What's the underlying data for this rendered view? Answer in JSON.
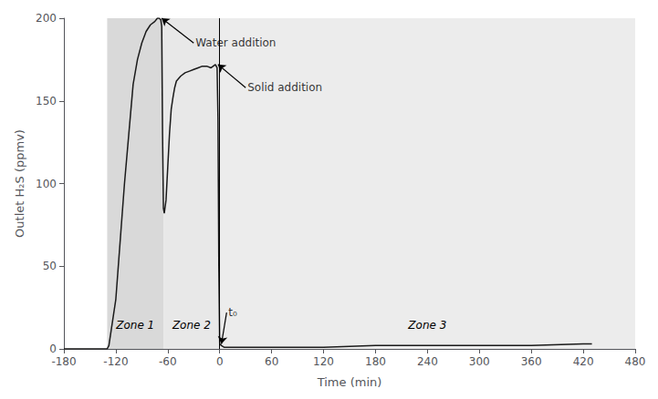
{
  "chart_data": {
    "type": "line",
    "xlabel": "Time (min)",
    "ylabel": "Outlet H₂S (ppmv)",
    "x": [
      -180,
      -130,
      -128,
      -120,
      -110,
      -100,
      -95,
      -90,
      -85,
      -80,
      -75,
      -72,
      -70,
      -68,
      -67,
      -66,
      -65,
      -64,
      -62,
      -60,
      -58,
      -56,
      -54,
      -52,
      -50,
      -45,
      -40,
      -35,
      -30,
      -25,
      -20,
      -15,
      -10,
      -5,
      -3,
      -2,
      -1,
      0,
      2,
      5,
      10,
      20,
      30,
      60,
      120,
      180,
      240,
      300,
      360,
      420,
      430
    ],
    "values": [
      0,
      0,
      2,
      30,
      100,
      160,
      175,
      185,
      192,
      196,
      198,
      200,
      200,
      199,
      195,
      130,
      85,
      82,
      90,
      110,
      130,
      145,
      152,
      158,
      162,
      165,
      167,
      168,
      169,
      170,
      171,
      171,
      170,
      172,
      170,
      140,
      50,
      3,
      2,
      1,
      1,
      1,
      1,
      1,
      1,
      2,
      2,
      2,
      2,
      3,
      3
    ],
    "color": "#1a1a1a",
    "xlim": [
      -180,
      480
    ],
    "ylim": [
      0,
      200
    ],
    "xticks": [
      -180,
      -120,
      -60,
      0,
      60,
      120,
      180,
      240,
      300,
      360,
      420,
      480
    ],
    "yticks": [
      0,
      50,
      100,
      150,
      200
    ],
    "grid": false,
    "zones": [
      {
        "label": "Zone 1",
        "range": [
          -130,
          -65
        ],
        "color": "#d9d9d9"
      },
      {
        "label": "Zone 2",
        "range": [
          -65,
          0
        ],
        "color": "#d9d9d9"
      },
      {
        "label": "Zone 3",
        "range": [
          0,
          480
        ],
        "color": "#d9d9d9"
      }
    ],
    "vertical_lines": [
      {
        "x": 0,
        "color": "#000000"
      }
    ],
    "annotations": [
      {
        "text": "Water addition",
        "x": -67,
        "y": 200,
        "text_x": -30,
        "text_y": 185
      },
      {
        "text": "Solid addition",
        "x": -2,
        "y": 172,
        "text_x": 30,
        "text_y": 158
      },
      {
        "text": "t₀",
        "x": 2,
        "y": 3,
        "text_x": 8,
        "text_y": 22
      }
    ]
  }
}
